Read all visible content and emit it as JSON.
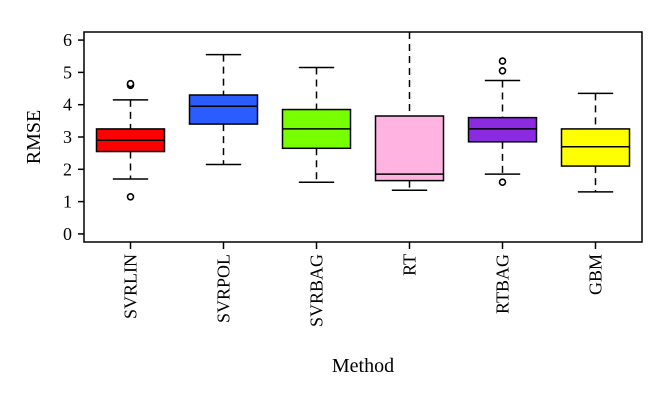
{
  "chart_data": {
    "type": "boxplot",
    "title": "",
    "xlabel": "Method",
    "ylabel": "RMSE",
    "ylim": [
      -0.25,
      6.25
    ],
    "yticks": [
      0,
      1,
      2,
      3,
      4,
      5,
      6
    ],
    "ytick_labels": [
      "0",
      "1",
      "2",
      "3",
      "4",
      "5",
      "6"
    ],
    "categories": [
      "SVRLIN",
      "SVRPOL",
      "SVRBAG",
      "RT",
      "RTBAG",
      "GBM"
    ],
    "grid": false,
    "legend": "none",
    "boxes": [
      {
        "name": "SVRLIN",
        "color": "#ff0000",
        "q1": 2.55,
        "median": 2.9,
        "q3": 3.25,
        "whisker_low": 1.7,
        "whisker_high": 4.15,
        "outliers": [
          4.6,
          4.65,
          1.15
        ]
      },
      {
        "name": "SVRPOL",
        "color": "#2a5cff",
        "q1": 3.4,
        "median": 3.95,
        "q3": 4.3,
        "whisker_low": 2.15,
        "whisker_high": 5.55,
        "outliers": []
      },
      {
        "name": "SVRBAG",
        "color": "#77ff00",
        "q1": 2.65,
        "median": 3.25,
        "q3": 3.85,
        "whisker_low": 1.6,
        "whisker_high": 5.15,
        "outliers": []
      },
      {
        "name": "RT",
        "color": "#ffb3e0",
        "q1": 1.65,
        "median": 1.85,
        "q3": 3.65,
        "whisker_low": 1.35,
        "whisker_high": 6.3,
        "outliers": []
      },
      {
        "name": "RTBAG",
        "color": "#8a2be2",
        "q1": 2.85,
        "median": 3.25,
        "q3": 3.6,
        "whisker_low": 1.85,
        "whisker_high": 4.75,
        "outliers": [
          5.05,
          5.35,
          1.6
        ]
      },
      {
        "name": "GBM",
        "color": "#ffff00",
        "q1": 2.1,
        "median": 2.7,
        "q3": 3.25,
        "whisker_low": 1.3,
        "whisker_high": 4.35,
        "outliers": []
      }
    ]
  }
}
